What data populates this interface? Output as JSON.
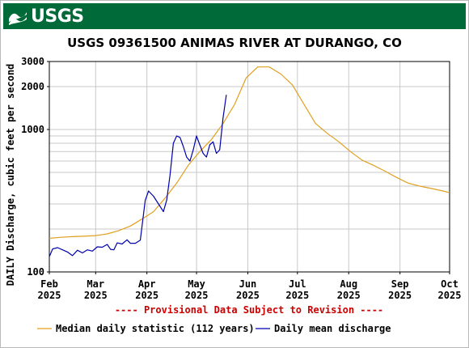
{
  "header": {
    "logo_text": "USGS",
    "title": "USGS 09361500 ANIMAS RIVER AT DURANGO, CO",
    "banner_color": "#006a38"
  },
  "chart_data": {
    "type": "line",
    "ylabel": "DAILY Discharge, cubic feet per second",
    "yscale": "log",
    "ylim": [
      100,
      3000
    ],
    "xlim": [
      "2025-02-01",
      "2025-10-01"
    ],
    "y_ticks": [
      {
        "value": 100,
        "label": "100"
      },
      {
        "value": 1000,
        "label": "1000"
      },
      {
        "value": 2000,
        "label": "2000"
      },
      {
        "value": 3000,
        "label": "3000"
      }
    ],
    "x_ticks": [
      {
        "date": "2025-02-01",
        "month": "Feb",
        "year": "2025"
      },
      {
        "date": "2025-03-01",
        "month": "Mar",
        "year": "2025"
      },
      {
        "date": "2025-04-01",
        "month": "Apr",
        "year": "2025"
      },
      {
        "date": "2025-05-01",
        "month": "May",
        "year": "2025"
      },
      {
        "date": "2025-06-01",
        "month": "Jun",
        "year": "2025"
      },
      {
        "date": "2025-07-01",
        "month": "Jul",
        "year": "2025"
      },
      {
        "date": "2025-08-01",
        "month": "Aug",
        "year": "2025"
      },
      {
        "date": "2025-09-01",
        "month": "Sep",
        "year": "2025"
      },
      {
        "date": "2025-10-01",
        "month": "Oct",
        "year": "2025"
      }
    ],
    "annotation": "---- Provisional Data Subject to Revision ----",
    "annotation_color": "#cc0000",
    "grid": true,
    "legend_position": "bottom",
    "series": [
      {
        "name": "Median daily statistic (112 years)",
        "color": "#e0a020",
        "points": [
          [
            "2025-02-01",
            172
          ],
          [
            "2025-02-08",
            175
          ],
          [
            "2025-02-15",
            177
          ],
          [
            "2025-02-22",
            178
          ],
          [
            "2025-03-01",
            180
          ],
          [
            "2025-03-08",
            185
          ],
          [
            "2025-03-15",
            195
          ],
          [
            "2025-03-22",
            210
          ],
          [
            "2025-03-29",
            235
          ],
          [
            "2025-04-05",
            265
          ],
          [
            "2025-04-12",
            330
          ],
          [
            "2025-04-19",
            420
          ],
          [
            "2025-04-26",
            560
          ],
          [
            "2025-05-03",
            700
          ],
          [
            "2025-05-10",
            850
          ],
          [
            "2025-05-17",
            1100
          ],
          [
            "2025-05-24",
            1500
          ],
          [
            "2025-05-31",
            2300
          ],
          [
            "2025-06-07",
            2750
          ],
          [
            "2025-06-14",
            2750
          ],
          [
            "2025-06-21",
            2450
          ],
          [
            "2025-06-28",
            2050
          ],
          [
            "2025-07-05",
            1500
          ],
          [
            "2025-07-12",
            1100
          ],
          [
            "2025-07-19",
            940
          ],
          [
            "2025-07-26",
            820
          ],
          [
            "2025-08-02",
            700
          ],
          [
            "2025-08-09",
            610
          ],
          [
            "2025-08-16",
            560
          ],
          [
            "2025-08-23",
            510
          ],
          [
            "2025-08-30",
            460
          ],
          [
            "2025-09-06",
            420
          ],
          [
            "2025-09-13",
            400
          ],
          [
            "2025-09-20",
            385
          ],
          [
            "2025-09-27",
            370
          ],
          [
            "2025-10-01",
            360
          ]
        ]
      },
      {
        "name": "Daily mean discharge",
        "color": "#0000aa",
        "points": [
          [
            "2025-02-01",
            128
          ],
          [
            "2025-02-03",
            145
          ],
          [
            "2025-02-06",
            148
          ],
          [
            "2025-02-09",
            143
          ],
          [
            "2025-02-12",
            138
          ],
          [
            "2025-02-15",
            130
          ],
          [
            "2025-02-18",
            142
          ],
          [
            "2025-02-21",
            136
          ],
          [
            "2025-02-24",
            143
          ],
          [
            "2025-02-27",
            140
          ],
          [
            "2025-03-02",
            150
          ],
          [
            "2025-03-05",
            149
          ],
          [
            "2025-03-08",
            156
          ],
          [
            "2025-03-10",
            144
          ],
          [
            "2025-03-12",
            143
          ],
          [
            "2025-03-14",
            160
          ],
          [
            "2025-03-17",
            157
          ],
          [
            "2025-03-20",
            168
          ],
          [
            "2025-03-22",
            159
          ],
          [
            "2025-03-25",
            159
          ],
          [
            "2025-03-28",
            167
          ],
          [
            "2025-03-31",
            318
          ],
          [
            "2025-04-02",
            370
          ],
          [
            "2025-04-05",
            340
          ],
          [
            "2025-04-08",
            300
          ],
          [
            "2025-04-11",
            265
          ],
          [
            "2025-04-13",
            320
          ],
          [
            "2025-04-15",
            480
          ],
          [
            "2025-04-17",
            800
          ],
          [
            "2025-04-19",
            900
          ],
          [
            "2025-04-21",
            880
          ],
          [
            "2025-04-23",
            760
          ],
          [
            "2025-04-25",
            640
          ],
          [
            "2025-04-27",
            600
          ],
          [
            "2025-04-29",
            720
          ],
          [
            "2025-05-01",
            900
          ],
          [
            "2025-05-03",
            780
          ],
          [
            "2025-05-05",
            680
          ],
          [
            "2025-05-07",
            640
          ],
          [
            "2025-05-09",
            780
          ],
          [
            "2025-05-11",
            820
          ],
          [
            "2025-05-13",
            680
          ],
          [
            "2025-05-15",
            720
          ],
          [
            "2025-05-17",
            1200
          ],
          [
            "2025-05-19",
            1750
          ]
        ]
      }
    ]
  }
}
